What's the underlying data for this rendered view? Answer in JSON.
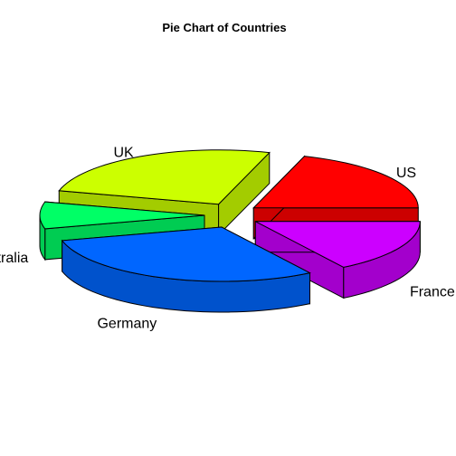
{
  "chart_data": {
    "type": "pie",
    "style": "3d-exploded",
    "title": "Pie Chart of Countries",
    "slices": [
      {
        "label": "US",
        "value": 20,
        "color": "#ff0000",
        "side_color": "#cc0000"
      },
      {
        "label": "UK",
        "value": 26,
        "color": "#ccff00",
        "side_color": "#a3cc00"
      },
      {
        "label": "Australia",
        "value": 8,
        "color": "#00ff66",
        "side_color": "#00cc52"
      },
      {
        "label": "Germany",
        "value": 30,
        "color": "#0066ff",
        "side_color": "#0052cc"
      },
      {
        "label": "France",
        "value": 16,
        "color": "#cc00ff",
        "side_color": "#a300cc"
      }
    ]
  }
}
